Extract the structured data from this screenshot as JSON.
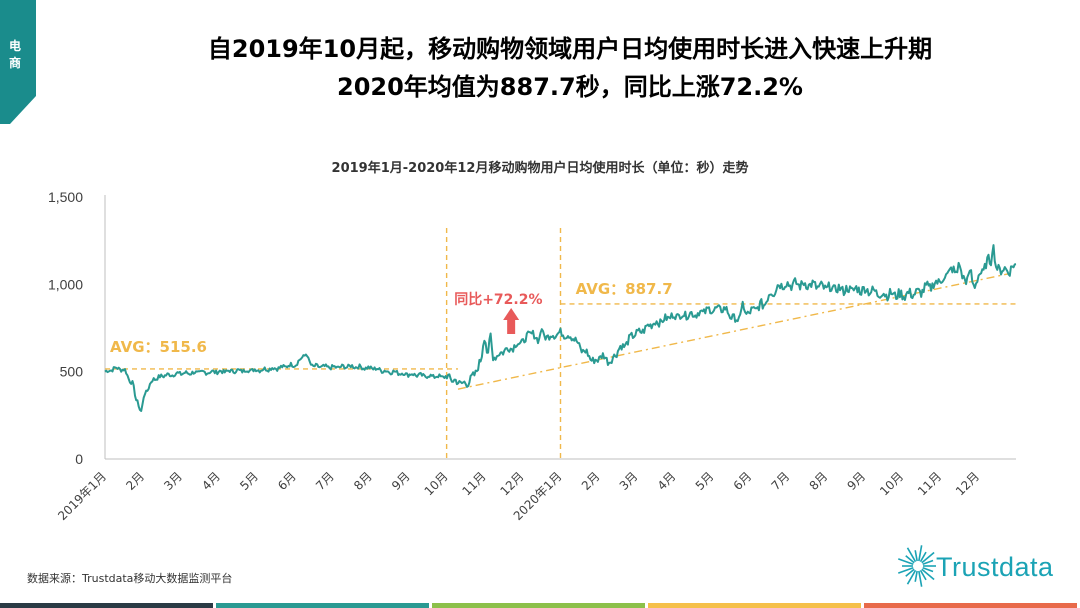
{
  "corner_tag": {
    "text": "电商",
    "color": "#1a8c8c"
  },
  "title_line1": "自2019年10月起，移动购物领域用户日均使用时长进入快速上升期",
  "title_line2": "2020年均值为887.7秒，同比上涨72.2%",
  "source": "数据来源：Trustdata移动大数据监测平台",
  "logo_text": "Trustdata",
  "bottom_bar_colors": [
    "#2a3a44",
    "#2a9a92",
    "#8cc04a",
    "#f5c04a",
    "#e86a4a"
  ],
  "chart_data": {
    "type": "line",
    "title": "2019年1月-2020年12月移动购物用户日均使用时长（单位：秒）走势",
    "ylim": [
      0,
      1500
    ],
    "yticks": [
      0,
      500,
      1000,
      1500
    ],
    "ytick_labels": [
      "0",
      "500",
      "1,000",
      "1,500"
    ],
    "x_labels": [
      "2019年1月",
      "2月",
      "3月",
      "4月",
      "5月",
      "6月",
      "7月",
      "8月",
      "9月",
      "10月",
      "11月",
      "12月",
      "2020年1月",
      "2月",
      "3月",
      "4月",
      "5月",
      "6月",
      "7月",
      "8月",
      "9月",
      "10月",
      "11月",
      "12月"
    ],
    "line_color": "#2a9a92",
    "annotation_color": "#f0b84a",
    "arrow_color": "#e85a5a",
    "avg_2019": {
      "label": "AVG：515.6",
      "value": 515.6,
      "start_month": 0,
      "end_month": 9
    },
    "avg_2020": {
      "label": "AVG：887.7",
      "value": 887.7,
      "start_month": 12,
      "end_month": 24
    },
    "growth_label": "同比+72.2%",
    "trend_line": {
      "start": [
        9.3,
        400
      ],
      "end": [
        23.8,
        1060
      ]
    },
    "dividers": [
      9,
      12
    ],
    "series": [
      {
        "anchors": [
          [
            0,
            500
          ],
          [
            0.3,
            520
          ],
          [
            0.5,
            510
          ],
          [
            0.7,
            440
          ],
          [
            0.85,
            330
          ],
          [
            0.95,
            270
          ],
          [
            1.05,
            380
          ],
          [
            1.3,
            460
          ],
          [
            1.6,
            480
          ],
          [
            2,
            490
          ],
          [
            2.5,
            495
          ],
          [
            3,
            500
          ],
          [
            3.5,
            505
          ],
          [
            4,
            510
          ],
          [
            4.5,
            520
          ],
          [
            5,
            540
          ],
          [
            5.25,
            590
          ],
          [
            5.5,
            530
          ],
          [
            6,
            525
          ],
          [
            6.5,
            530
          ],
          [
            7,
            520
          ],
          [
            7.5,
            500
          ],
          [
            8,
            485
          ],
          [
            8.5,
            475
          ],
          [
            9,
            470
          ],
          [
            9.3,
            440
          ],
          [
            9.5,
            430
          ],
          [
            9.7,
            470
          ],
          [
            9.9,
            560
          ],
          [
            10.0,
            700
          ],
          [
            10.1,
            580
          ],
          [
            10.3,
            590
          ],
          [
            10.6,
            630
          ],
          [
            11,
            670
          ],
          [
            11.2,
            720
          ],
          [
            11.4,
            690
          ],
          [
            11.7,
            705
          ],
          [
            12,
            720
          ],
          [
            12.3,
            700
          ],
          [
            12.6,
            620
          ],
          [
            12.9,
            560
          ],
          [
            13.1,
            590
          ],
          [
            13.3,
            560
          ],
          [
            13.6,
            640
          ],
          [
            14,
            720
          ],
          [
            14.5,
            780
          ],
          [
            15,
            820
          ],
          [
            15.5,
            830
          ],
          [
            16,
            855
          ],
          [
            16.3,
            860
          ],
          [
            16.6,
            800
          ],
          [
            17,
            840
          ],
          [
            17.3,
            880
          ],
          [
            17.6,
            960
          ],
          [
            17.8,
            1000
          ],
          [
            18,
            1000
          ],
          [
            18.5,
            1000
          ],
          [
            19,
            980
          ],
          [
            19.5,
            970
          ],
          [
            20,
            970
          ],
          [
            20.5,
            945
          ],
          [
            21,
            940
          ],
          [
            21.4,
            950
          ],
          [
            21.7,
            985
          ],
          [
            22,
            1020
          ],
          [
            22.3,
            1080
          ],
          [
            22.6,
            1040
          ],
          [
            22.9,
            1000
          ],
          [
            23.1,
            1070
          ],
          [
            23.3,
            1140
          ],
          [
            23.5,
            1090
          ],
          [
            23.8,
            1080
          ],
          [
            24,
            1110
          ]
        ],
        "spikes": [
          [
            5.3,
            600
          ],
          [
            10.15,
            740
          ],
          [
            11.5,
            750
          ],
          [
            16.8,
            900
          ],
          [
            22.5,
            1140
          ],
          [
            22.8,
            1100
          ],
          [
            23.4,
            1240
          ]
        ]
      }
    ]
  }
}
